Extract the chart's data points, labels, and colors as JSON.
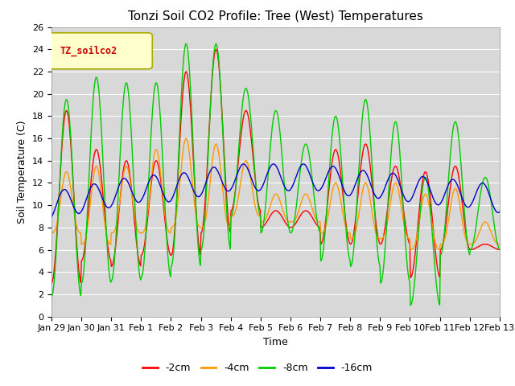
{
  "title": "Tonzi Soil CO2 Profile: Tree (West) Temperatures",
  "xlabel": "Time",
  "ylabel": "Soil Temperature (C)",
  "ylim": [
    0,
    26
  ],
  "n_days": 15,
  "x_tick_labels": [
    "Jan 29",
    "Jan 30",
    "Jan 31",
    "Feb 1",
    "Feb 2",
    "Feb 3",
    "Feb 4",
    "Feb 5",
    "Feb 6",
    "Feb 7",
    "Feb 8",
    "Feb 9",
    "Feb 10",
    "Feb 11",
    "Feb 12",
    "Feb 13"
  ],
  "legend_label": "TZ_soilco2",
  "legend_box_color": "#ffffcc",
  "legend_box_edge": "#aaaa00",
  "legend_text_color": "#cc0000",
  "series_labels": [
    "-2cm",
    "-4cm",
    "-8cm",
    "-16cm"
  ],
  "series_colors": [
    "#ff0000",
    "#ff9900",
    "#00cc00",
    "#0000cc"
  ],
  "plot_bg_color": "#d8d8d8",
  "fig_bg_color": "#ffffff",
  "grid_color": "#ffffff",
  "title_fontsize": 11,
  "axis_label_fontsize": 9,
  "tick_fontsize": 8,
  "peaks_8": [
    19.5,
    21.5,
    21.0,
    21.0,
    24.5,
    24.5,
    20.5,
    18.5,
    15.5,
    18.0,
    19.5,
    17.5,
    12.5,
    17.5,
    12.5
  ],
  "troughs_8": [
    1.8,
    3.0,
    3.2,
    3.5,
    4.5,
    6.0,
    9.0,
    7.5,
    7.5,
    5.0,
    4.5,
    3.0,
    1.0,
    5.5,
    6.0
  ],
  "peaks_2": [
    18.5,
    15.0,
    14.0,
    14.0,
    22.0,
    24.0,
    18.5,
    9.5,
    9.5,
    15.0,
    15.5,
    13.5,
    13.0,
    13.5,
    6.5
  ],
  "troughs_2": [
    3.0,
    5.0,
    4.5,
    5.5,
    5.5,
    7.5,
    9.5,
    8.0,
    8.0,
    6.5,
    6.5,
    6.5,
    3.5,
    6.0,
    6.0
  ],
  "peaks_4": [
    13.0,
    13.5,
    13.5,
    15.0,
    16.0,
    15.5,
    14.0,
    11.0,
    11.0,
    12.0,
    12.0,
    12.0,
    11.0,
    11.5,
    8.5
  ],
  "troughs_4": [
    7.5,
    6.5,
    7.5,
    7.5,
    8.0,
    8.0,
    9.0,
    8.5,
    8.5,
    7.5,
    7.0,
    7.0,
    6.0,
    6.5,
    6.5
  ],
  "base_16": [
    10.0,
    10.5,
    11.0,
    11.5,
    11.5,
    12.0,
    12.5,
    12.5,
    12.5,
    12.5,
    12.0,
    11.8,
    11.5,
    11.2,
    11.0,
    10.5
  ]
}
